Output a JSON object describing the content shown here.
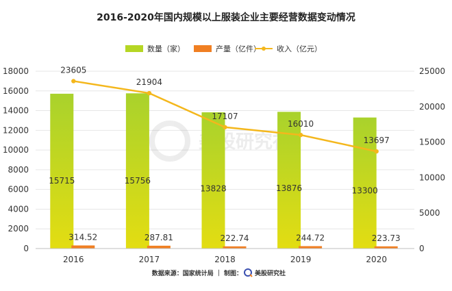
{
  "chart_data": {
    "type": "bar",
    "title": "2016-2020年国内规模以上服装企业主要经营数据变动情况",
    "categories": [
      "2016",
      "2017",
      "2018",
      "2019",
      "2020"
    ],
    "series": [
      {
        "name": "数量（家）",
        "type": "bar",
        "axis": "left",
        "color": "#b5d624",
        "values": [
          15715,
          15756,
          13828,
          13876,
          13300
        ]
      },
      {
        "name": "产量（亿件）",
        "type": "bar",
        "axis": "left",
        "color": "#f07f22",
        "values": [
          314.52,
          287.81,
          222.74,
          244.72,
          223.73
        ]
      },
      {
        "name": "收入（亿元）",
        "type": "line",
        "axis": "right",
        "color": "#f4b71c",
        "values": [
          23605,
          21904,
          17107,
          16010,
          13697
        ]
      }
    ],
    "data_labels": {
      "count": [
        "15715",
        "15756",
        "13828",
        "13876",
        "13300"
      ],
      "output": [
        "314.52",
        "287.81",
        "222.74",
        "244.72",
        "223.73"
      ],
      "revenue": [
        "23605",
        "21904",
        "17107",
        "16010",
        "13697"
      ]
    },
    "y_left": {
      "range": [
        0,
        18000
      ],
      "ticks": [
        "0",
        "2000",
        "4000",
        "6000",
        "8000",
        "10000",
        "12000",
        "14000",
        "16000",
        "18000"
      ]
    },
    "y_right": {
      "range": [
        0,
        25000
      ],
      "ticks": [
        "0",
        "5000",
        "10000",
        "15000",
        "20000",
        "25000"
      ]
    },
    "grid": true,
    "legend_position": "top"
  },
  "source": {
    "text": "数据来源：国家统计局 ｜ 制图：",
    "brand": "美股研究社"
  },
  "watermark": {
    "text": "美股研究社"
  }
}
